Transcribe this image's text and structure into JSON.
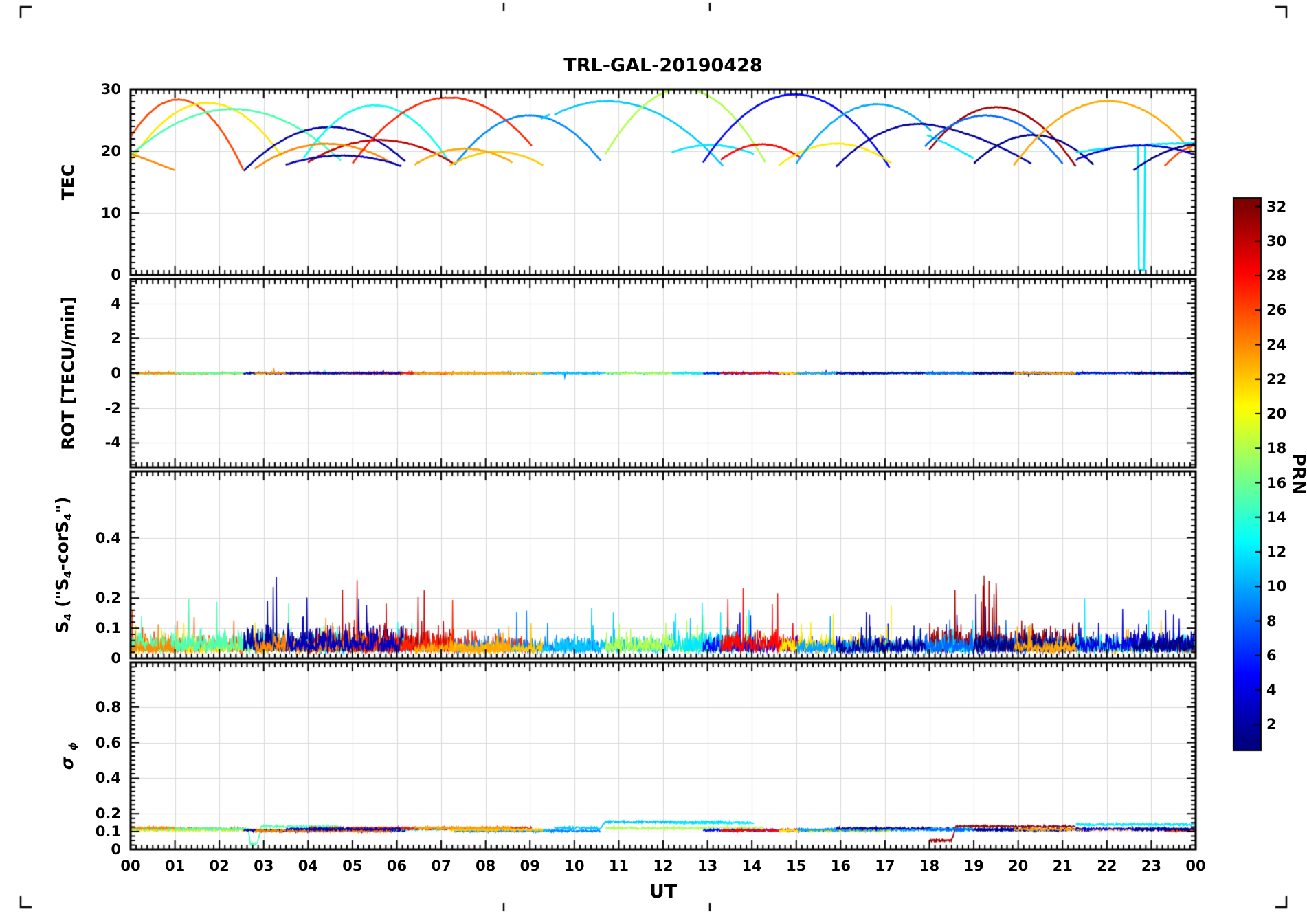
{
  "chart_data": {
    "type": "line",
    "title": "TRL-GAL-20190428",
    "xlabel": "UT",
    "x_range": [
      0,
      24
    ],
    "x_ticks": [
      "00",
      "01",
      "02",
      "03",
      "04",
      "05",
      "06",
      "07",
      "08",
      "09",
      "10",
      "11",
      "12",
      "13",
      "14",
      "15",
      "16",
      "17",
      "18",
      "19",
      "20",
      "21",
      "22",
      "23",
      "00"
    ],
    "grid": true,
    "colorbar": {
      "label": "PRN",
      "colormap": "jet",
      "min": 0.5,
      "max": 32.5,
      "ticks": [
        2,
        4,
        6,
        8,
        10,
        12,
        14,
        16,
        18,
        20,
        22,
        24,
        26,
        28,
        30,
        32
      ]
    },
    "panels": [
      {
        "id": "tec",
        "ylabel": "TEC",
        "ylim": [
          0,
          30
        ],
        "yticks": [
          0,
          10,
          20,
          30
        ],
        "ytick_labels": [
          "0",
          "10",
          "20",
          "30"
        ]
      },
      {
        "id": "rot",
        "ylabel": "ROT [TECU/min]",
        "ylim": [
          -5.4,
          5.4
        ],
        "yticks": [
          -4,
          -2,
          0,
          2,
          4
        ],
        "ytick_labels": [
          "-4",
          "-2",
          "0",
          "2",
          "4"
        ]
      },
      {
        "id": "s4",
        "ylabel_parts": [
          {
            "t": "S"
          },
          {
            "t": "4",
            "sub": true
          },
          {
            "t": " (\""
          },
          {
            "t": "S"
          },
          {
            "t": "4",
            "sub": true
          },
          {
            "t": "-corS"
          },
          {
            "t": "4",
            "sub": true
          },
          {
            "t": "\")"
          }
        ],
        "ylim": [
          0,
          0.62
        ],
        "yticks": [
          0,
          0.1,
          0.2,
          0.4
        ],
        "ytick_labels": [
          "0",
          "0.1",
          "0.2",
          "0.4"
        ]
      },
      {
        "id": "sigma_phi",
        "ylabel_parts": [
          {
            "t": "σ",
            "italic": true
          },
          {
            "t": " ",
            "sub": false
          },
          {
            "t": "ϕ",
            "sub": true,
            "italic": true
          }
        ],
        "ylim": [
          0,
          1.05
        ],
        "yticks": [
          0,
          0.1,
          0.2,
          0.4,
          0.6,
          0.8
        ],
        "ytick_labels": [
          "0",
          "0.1",
          "0.2",
          "0.4",
          "0.6",
          "0.8"
        ]
      }
    ],
    "passes": [
      {
        "prn": 26,
        "t": [
          0.0,
          0.9,
          2.55
        ],
        "tec": [
          22.3,
          28.2,
          16.8
        ],
        "s4": 0.1
      },
      {
        "prn": 21,
        "t": [
          0.0,
          2.0,
          3.4
        ],
        "tec": [
          18.4,
          27.6,
          19.2
        ],
        "s4": 0.09
      },
      {
        "prn": 15,
        "t": [
          0.0,
          2.3,
          4.75
        ],
        "tec": [
          19.3,
          26.8,
          18.4
        ],
        "s4": 0.13,
        "sig": [
          [
            0,
            0.115
          ],
          [
            2.65,
            0.115
          ],
          [
            2.7,
            0.03
          ],
          [
            2.85,
            0.03
          ],
          [
            2.95,
            0.13
          ],
          [
            4.75,
            0.128
          ]
        ]
      },
      {
        "prn": 2,
        "t": [
          2.55,
          4.5,
          6.2
        ],
        "tec": [
          16.8,
          23.9,
          18.3
        ],
        "s4": 0.15
      },
      {
        "prn": 13,
        "t": [
          3.9,
          5.6,
          7.15
        ],
        "tec": [
          18.9,
          27.4,
          18.6
        ],
        "s4": 0.1
      },
      {
        "prn": 30,
        "t": [
          4.0,
          6.0,
          7.3
        ],
        "tec": [
          18.2,
          21.6,
          17.9
        ],
        "s4": 0.15
      },
      {
        "prn": 24,
        "t": [
          2.8,
          4.5,
          5.9
        ],
        "tec": [
          17.2,
          21.2,
          18.0
        ],
        "s4": 0.11
      },
      {
        "prn": 27,
        "t": [
          5.0,
          7.0,
          9.05
        ],
        "tec": [
          18.0,
          28.6,
          20.8
        ],
        "s4": 0.12
      },
      {
        "prn": 9,
        "t": [
          7.3,
          9.15,
          10.6
        ],
        "tec": [
          17.8,
          25.7,
          18.4
        ],
        "s4": 0.09
      },
      {
        "prn": 11,
        "t": [
          9.25,
          9.35,
          9.45
        ],
        "tec": [
          25.2,
          25.6,
          25.9
        ],
        "s4": 0.06
      },
      {
        "prn": 11,
        "t": [
          9.55,
          10.5,
          13.35
        ],
        "tec": [
          25.9,
          28.0,
          17.6
        ],
        "s4": 0.1,
        "sig": [
          [
            9.55,
            0.12
          ],
          [
            10.6,
            0.12
          ],
          [
            10.7,
            0.155
          ],
          [
            13.35,
            0.152
          ]
        ]
      },
      {
        "prn": 18,
        "t": [
          10.7,
          12.6,
          14.3
        ],
        "tec": [
          19.5,
          30.0,
          18.2
        ],
        "s4": 0.11
      },
      {
        "prn": 12,
        "t": [
          12.2,
          13.1,
          14.05
        ],
        "tec": [
          19.8,
          21.0,
          19.5
        ],
        "s4": 0.12,
        "sig": [
          [
            12.2,
            0.15
          ],
          [
            14.05,
            0.15
          ]
        ]
      },
      {
        "prn": 5,
        "t": [
          12.9,
          14.7,
          17.1
        ],
        "tec": [
          18.2,
          29.0,
          17.4
        ],
        "s4": 0.1
      },
      {
        "prn": 28,
        "t": [
          13.3,
          14.3,
          15.1
        ],
        "tec": [
          18.6,
          21.1,
          18.9
        ],
        "s4": 0.14
      },
      {
        "prn": 21,
        "t": [
          14.6,
          15.8,
          17.15
        ],
        "tec": [
          17.7,
          21.2,
          18.0
        ],
        "s4": 0.1
      },
      {
        "prn": 10,
        "t": [
          15.0,
          16.8,
          18.05
        ],
        "tec": [
          18.0,
          27.6,
          23.2
        ],
        "s4": 0.08
      },
      {
        "prn": 2,
        "t": [
          15.9,
          17.55,
          18.1
        ],
        "tec": [
          17.5,
          24.3,
          24.2
        ],
        "s4": 0.09
      },
      {
        "prn": 2,
        "t": [
          18.1,
          18.2,
          20.3
        ],
        "tec": [
          24.2,
          24.05,
          18.0
        ],
        "s4": 0.09
      },
      {
        "prn": 31,
        "t": [
          18.0,
          19.3,
          21.3
        ],
        "tec": [
          20.3,
          27.0,
          17.5
        ],
        "s4": 0.16,
        "sig": [
          [
            18.0,
            0.05
          ],
          [
            18.5,
            0.05
          ],
          [
            18.6,
            0.13
          ],
          [
            21.3,
            0.128
          ]
        ]
      },
      {
        "prn": 12,
        "t": [
          17.95,
          18.3,
          19.0
        ],
        "tec": [
          22.6,
          21.5,
          18.8
        ],
        "s4": 0.08
      },
      {
        "prn": 8,
        "t": [
          17.9,
          18.9,
          21.0
        ],
        "tec": [
          20.8,
          25.4,
          18.0
        ],
        "s4": 0.11
      },
      {
        "prn": 1,
        "t": [
          19.0,
          20.3,
          21.7
        ],
        "tec": [
          18.0,
          22.6,
          17.8
        ],
        "s4": 0.12
      },
      {
        "prn": 23,
        "t": [
          19.9,
          22.0,
          24.0
        ],
        "tec": [
          17.7,
          28.1,
          19.2
        ],
        "s4": 0.07
      },
      {
        "prn": 26,
        "t": [
          23.3,
          23.95,
          24.0
        ],
        "tec": [
          17.6,
          20.9,
          21.0
        ],
        "s4": 0.07
      },
      {
        "prn": 12,
        "t": [
          21.3,
          22.6,
          24.0
        ],
        "tec": [
          19.8,
          20.9,
          21.3
        ],
        "s4": 0.1,
        "drop": {
          "t": 22.78,
          "w": 0.14,
          "v": 0.8
        },
        "sig": [
          [
            21.3,
            0.14
          ],
          [
            24,
            0.14
          ]
        ]
      },
      {
        "prn": 4,
        "t": [
          21.3,
          22.6,
          24.0
        ],
        "tec": [
          18.6,
          20.9,
          19.4
        ],
        "s4": 0.12
      },
      {
        "prn": 1,
        "t": [
          22.6,
          23.9,
          24.0
        ],
        "tec": [
          16.9,
          21.1,
          21.2
        ],
        "s4": 0.1
      },
      {
        "prn": 22,
        "t": [
          7.2,
          8.2,
          9.3
        ],
        "tec": [
          17.7,
          19.9,
          17.7
        ],
        "s4": 0.06
      },
      {
        "prn": 23,
        "t": [
          6.4,
          7.5,
          8.6
        ],
        "tec": [
          17.8,
          20.4,
          18.2
        ],
        "s4": 0.06
      },
      {
        "prn": 3,
        "t": [
          3.5,
          4.8,
          6.1
        ],
        "tec": [
          17.8,
          19.3,
          17.6
        ],
        "s4": 0.13
      },
      {
        "prn": 24,
        "t": [
          0.0,
          0.5,
          1.0
        ],
        "tec": [
          19.6,
          18.3,
          16.9
        ],
        "s4": 0.07
      }
    ]
  }
}
